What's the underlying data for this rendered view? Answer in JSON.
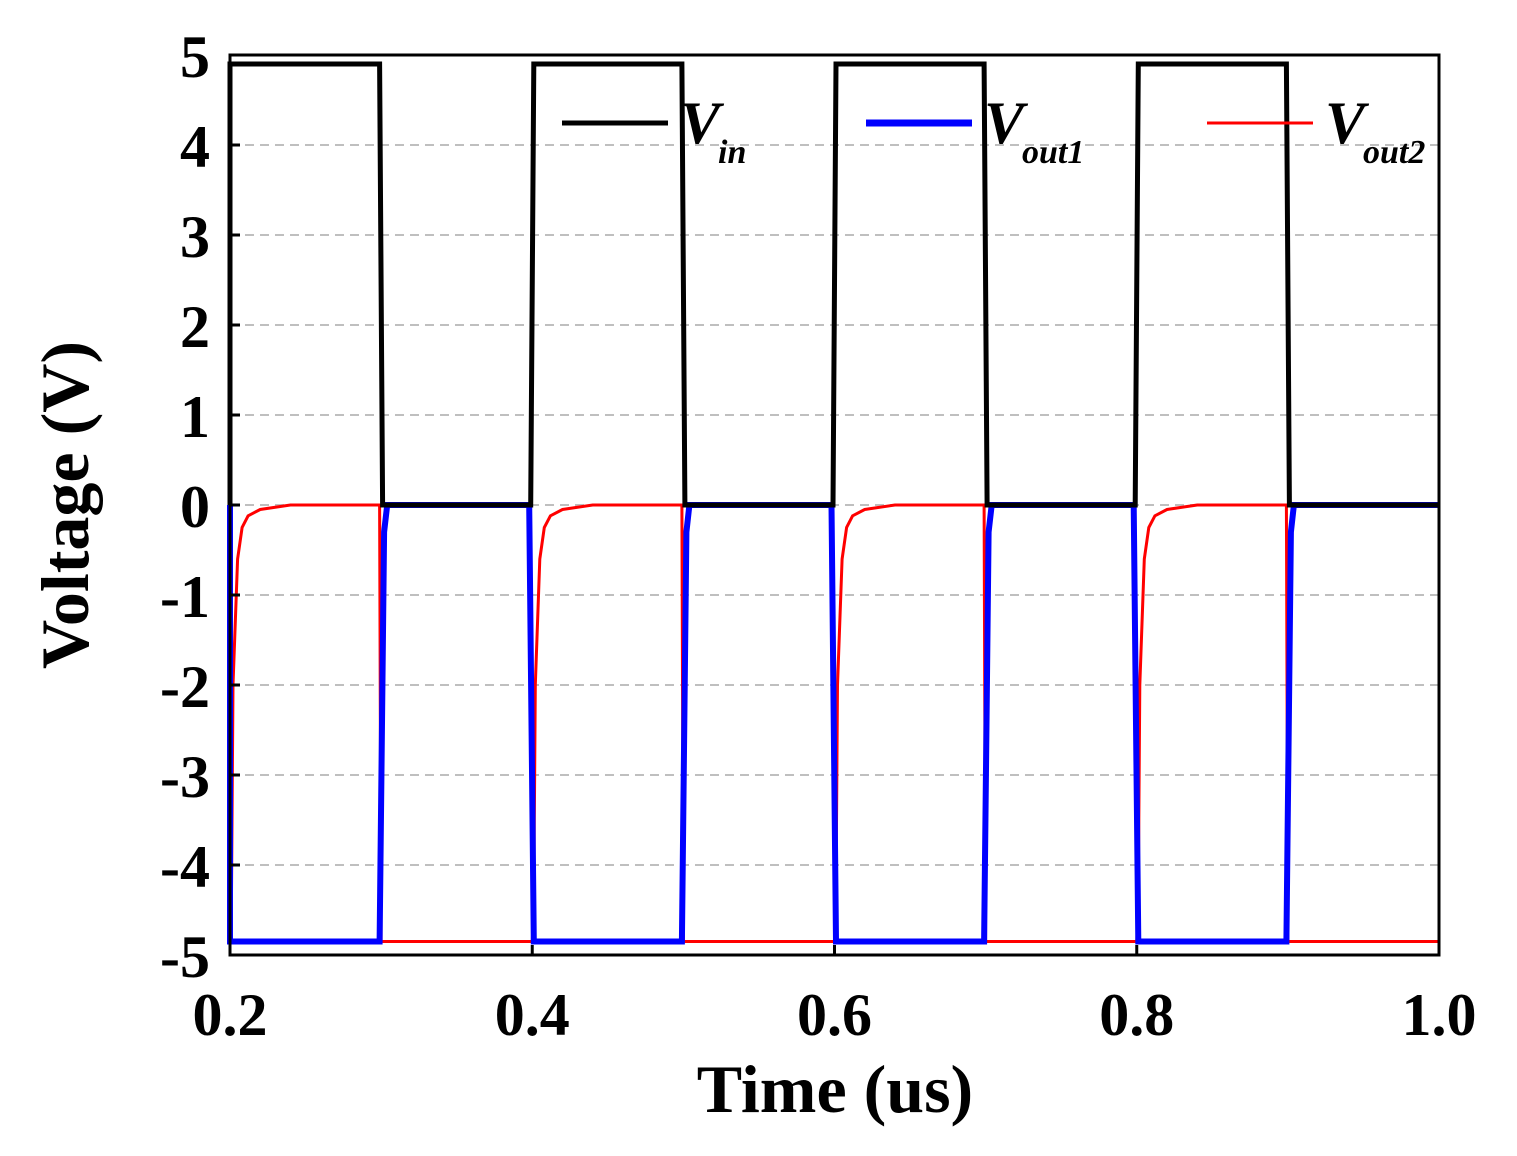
{
  "chart_data": {
    "type": "line",
    "title": "",
    "xlabel": "Time (us)",
    "ylabel": "Voltage (V)",
    "xlim": [
      0.2,
      1.0
    ],
    "ylim": [
      -5,
      5
    ],
    "grid": {
      "y": true,
      "x": false,
      "style": "dashed"
    },
    "legend_position": "top-right",
    "x_ticks": [
      {
        "value": 0.2,
        "label": "0.2"
      },
      {
        "value": 0.4,
        "label": "0.4"
      },
      {
        "value": 0.6,
        "label": "0.6"
      },
      {
        "value": 0.8,
        "label": "0.8"
      },
      {
        "value": 1.0,
        "label": "1.0"
      }
    ],
    "y_ticks": [
      {
        "value": 5,
        "label": "5"
      },
      {
        "value": 4,
        "label": "4"
      },
      {
        "value": 3,
        "label": "3"
      },
      {
        "value": 2,
        "label": "2"
      },
      {
        "value": 1,
        "label": "1"
      },
      {
        "value": 0,
        "label": "0"
      },
      {
        "value": -1,
        "label": "-1"
      },
      {
        "value": -2,
        "label": "-2"
      },
      {
        "value": -3,
        "label": "-3"
      },
      {
        "value": -4,
        "label": "-4"
      },
      {
        "value": -5,
        "label": "-5"
      }
    ],
    "series": [
      {
        "name": "V_in",
        "legend_main": "V",
        "legend_sub": "in",
        "color": "#000000",
        "x": [
          0.2,
          0.2,
          0.299,
          0.301,
          0.399,
          0.401,
          0.499,
          0.501,
          0.599,
          0.601,
          0.699,
          0.701,
          0.799,
          0.801,
          0.899,
          0.901,
          1.0
        ],
        "y": [
          0,
          4.9,
          4.9,
          0,
          0,
          4.9,
          4.9,
          0,
          0,
          4.9,
          4.9,
          0,
          0,
          4.9,
          4.9,
          0,
          0
        ]
      },
      {
        "name": "V_out1",
        "legend_main": "V",
        "legend_sub": "out1",
        "color": "#0000ff",
        "x": [
          0.2,
          0.2,
          0.299,
          0.302,
          0.304,
          0.398,
          0.401,
          0.499,
          0.502,
          0.504,
          0.598,
          0.601,
          0.699,
          0.702,
          0.704,
          0.798,
          0.801,
          0.899,
          0.902,
          0.904,
          1.0
        ],
        "y": [
          0,
          -4.85,
          -4.85,
          -0.3,
          0,
          0,
          -4.85,
          -4.85,
          -0.3,
          0,
          0,
          -4.85,
          -4.85,
          -0.3,
          0,
          0,
          -4.85,
          -4.85,
          -0.3,
          0,
          0
        ]
      },
      {
        "name": "V_out2",
        "legend_main": "V",
        "legend_sub": "out2",
        "color": "#ff0000",
        "x": [
          0.2,
          0.201,
          0.202,
          0.205,
          0.208,
          0.212,
          0.22,
          0.24,
          0.299,
          0.3,
          0.304,
          0.4,
          0.401,
          0.402,
          0.405,
          0.408,
          0.412,
          0.42,
          0.44,
          0.499,
          0.5,
          0.504,
          0.6,
          0.601,
          0.602,
          0.605,
          0.608,
          0.612,
          0.62,
          0.64,
          0.699,
          0.7,
          0.704,
          0.8,
          0.801,
          0.802,
          0.805,
          0.808,
          0.812,
          0.82,
          0.84,
          0.899,
          0.9,
          0.904,
          1.0
        ],
        "y": [
          -4.85,
          -4.3,
          -2.0,
          -0.6,
          -0.25,
          -0.12,
          -0.05,
          0,
          0,
          -4.85,
          -4.85,
          -4.85,
          -4.3,
          -2.0,
          -0.6,
          -0.25,
          -0.12,
          -0.05,
          0,
          0,
          -4.85,
          -4.85,
          -4.85,
          -4.3,
          -2.0,
          -0.6,
          -0.25,
          -0.12,
          -0.05,
          0,
          0,
          -4.85,
          -4.85,
          -4.85,
          -4.3,
          -2.0,
          -0.6,
          -0.25,
          -0.12,
          -0.05,
          0,
          0,
          -4.85,
          -4.85,
          -4.85
        ]
      }
    ]
  }
}
